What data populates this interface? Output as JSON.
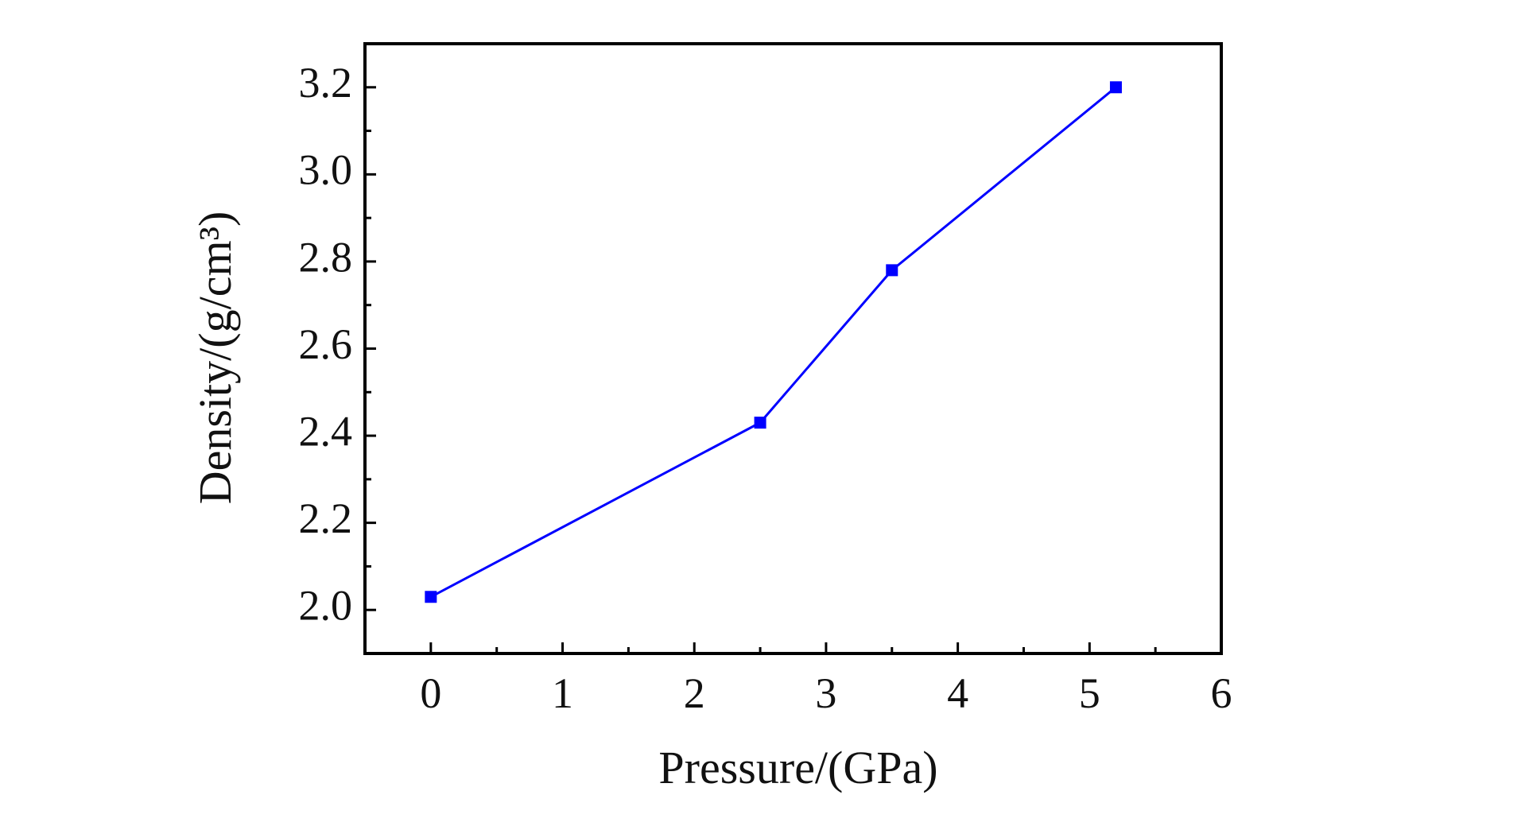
{
  "chart_data": {
    "type": "line",
    "x_label": "Pressure/(GPa)",
    "y_label": "Density/(g/cm³)",
    "x": [
      0,
      2.5,
      3.5,
      5.2
    ],
    "series": [
      {
        "color": "#0000ff",
        "values": [
          2.03,
          2.43,
          2.78,
          3.2
        ]
      }
    ],
    "xlim": [
      -0.5,
      6
    ],
    "ylim": [
      1.9,
      3.3
    ],
    "xticks": [
      0,
      1,
      2,
      3,
      4,
      5,
      6
    ],
    "yticks": [
      {
        "value": 2,
        "label": "2.0"
      },
      2.2,
      2.4,
      2.6,
      2.8,
      {
        "value": 3,
        "label": "3.0"
      },
      3.2
    ],
    "xminorticks": [
      0.5,
      1.5,
      2.5,
      3.5,
      4.5,
      5.5
    ],
    "yminorticks": [
      2.1,
      2.3,
      2.5,
      2.7,
      2.9,
      3.1
    ],
    "grid": false,
    "marker": "square"
  }
}
